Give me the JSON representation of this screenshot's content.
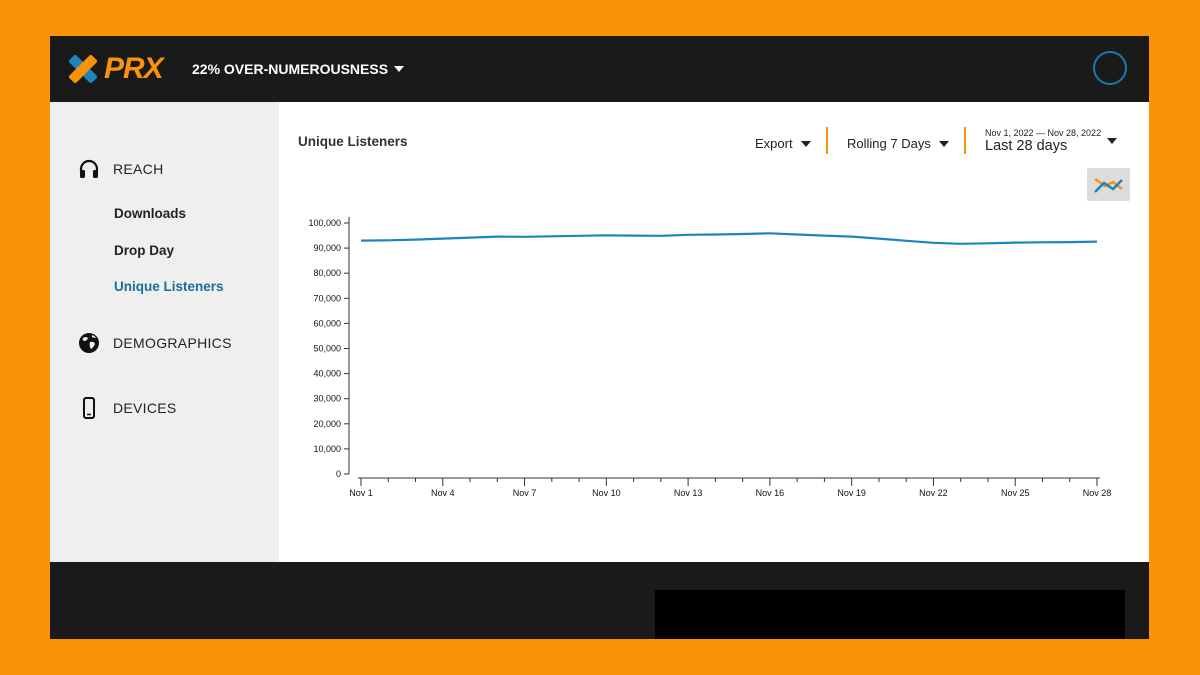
{
  "app": {
    "logo_text": "PRX",
    "podcast_name": "22% OVER-NUMEROUSNESS"
  },
  "sidebar": {
    "sections": [
      {
        "label": "REACH",
        "icon": "headphones-icon"
      },
      {
        "label": "DEMOGRAPHICS",
        "icon": "globe-icon"
      },
      {
        "label": "DEVICES",
        "icon": "phone-icon"
      }
    ],
    "reach_items": [
      {
        "label": "Downloads",
        "active": false
      },
      {
        "label": "Drop Day",
        "active": false
      },
      {
        "label": "Unique Listeners",
        "active": true
      }
    ]
  },
  "main": {
    "title": "Unique Listeners",
    "export_label": "Export",
    "interval_label": "Rolling 7 Days",
    "date_range_small": "Nov 1, 2022 — Nov 28, 2022",
    "date_range_label": "Last 28 days",
    "chart_toggle_icon": "line-chart-icon"
  },
  "colors": {
    "brand_orange": "#fb9309",
    "line_blue": "#1a86bd",
    "active_nav": "#1a6e99"
  },
  "chart_data": {
    "type": "line",
    "title": "",
    "xlabel": "",
    "ylabel": "",
    "ylim": [
      0,
      100000
    ],
    "yticks": [
      0,
      10000,
      20000,
      30000,
      40000,
      50000,
      60000,
      70000,
      80000,
      90000,
      100000
    ],
    "ytick_labels": [
      "0",
      "10,000",
      "20,000",
      "30,000",
      "40,000",
      "50,000",
      "60,000",
      "70,000",
      "80,000",
      "90,000",
      "100,000"
    ],
    "x": [
      "Nov 1",
      "Nov 2",
      "Nov 3",
      "Nov 4",
      "Nov 5",
      "Nov 6",
      "Nov 7",
      "Nov 8",
      "Nov 9",
      "Nov 10",
      "Nov 11",
      "Nov 12",
      "Nov 13",
      "Nov 14",
      "Nov 15",
      "Nov 16",
      "Nov 17",
      "Nov 18",
      "Nov 19",
      "Nov 20",
      "Nov 21",
      "Nov 22",
      "Nov 23",
      "Nov 24",
      "Nov 25",
      "Nov 26",
      "Nov 27",
      "Nov 28"
    ],
    "xtick_labels": [
      "Nov 1",
      "Nov 4",
      "Nov 7",
      "Nov 10",
      "Nov 13",
      "Nov 16",
      "Nov 19",
      "Nov 22",
      "Nov 25",
      "Nov 28"
    ],
    "series": [
      {
        "values": [
          93000,
          93100,
          93400,
          93800,
          94200,
          94600,
          94500,
          94700,
          94900,
          95100,
          95000,
          94900,
          95300,
          95400,
          95600,
          95900,
          95400,
          95000,
          94600,
          93800,
          92900,
          92100,
          91700,
          91900,
          92200,
          92300,
          92400,
          92600
        ]
      }
    ],
    "grid": false
  }
}
